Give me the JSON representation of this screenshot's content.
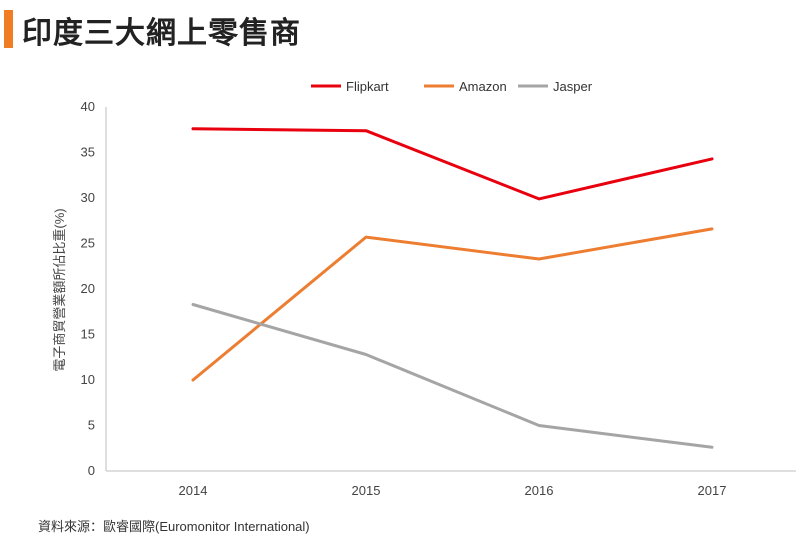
{
  "page": {
    "title": "印度三大網上零售商",
    "source": "資料來源：歐睿國際(Euromonitor International)",
    "accent_color": "#f07d23"
  },
  "chart_data": {
    "type": "line",
    "title": "",
    "xlabel": "",
    "ylabel": "電子商貿營業額所佔比重(%)",
    "x": [
      "2014",
      "2015",
      "2016",
      "2017"
    ],
    "ylim": [
      0,
      40
    ],
    "yticks": [
      0,
      5,
      10,
      15,
      20,
      25,
      30,
      35,
      40
    ],
    "grid": false,
    "legend_position": "top-center",
    "series": [
      {
        "name": "Flipkart",
        "values": [
          37.6,
          37.4,
          29.9,
          34.3
        ],
        "color": "#e8000e"
      },
      {
        "name": "Amazon",
        "values": [
          10.0,
          25.7,
          23.3,
          26.6
        ],
        "color": "#ed7d31"
      },
      {
        "name": "Jasper",
        "values": [
          18.3,
          12.8,
          5.0,
          2.6
        ],
        "color": "#a5a5a5"
      }
    ]
  }
}
